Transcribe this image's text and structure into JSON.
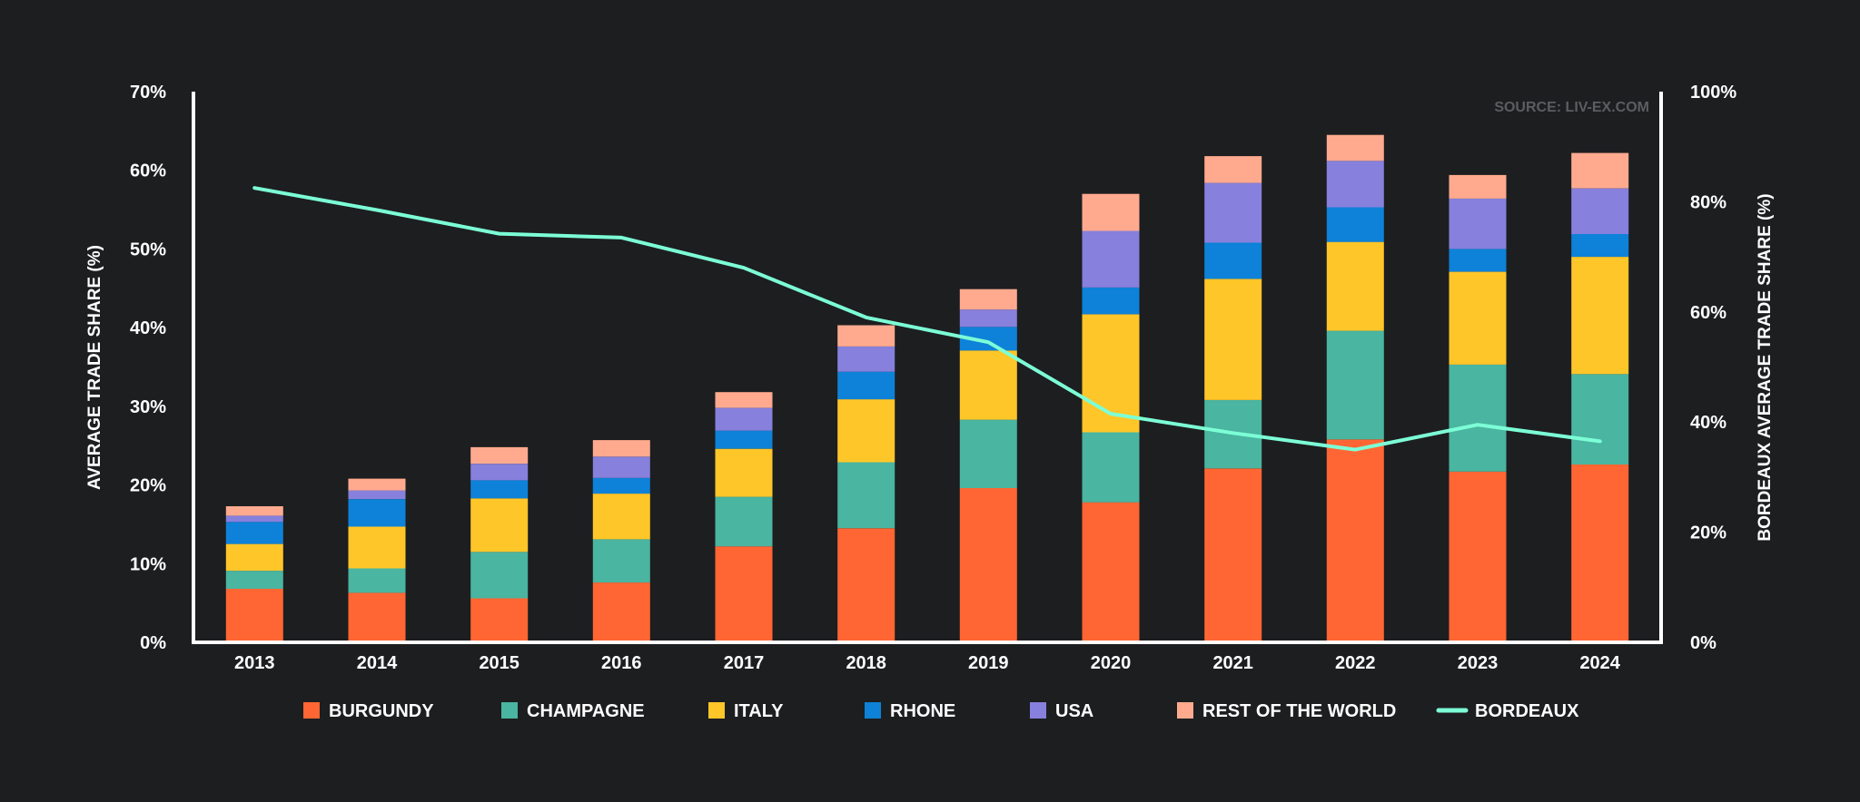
{
  "chart_data": {
    "type": "bar",
    "stacked": true,
    "categories": [
      "2013",
      "2014",
      "2015",
      "2016",
      "2017",
      "2018",
      "2019",
      "2020",
      "2021",
      "2022",
      "2023",
      "2024"
    ],
    "series": [
      {
        "name": "BURGUNDY",
        "color": "#ff6633",
        "values": [
          6.8,
          6.3,
          5.6,
          7.6,
          12.2,
          14.5,
          19.6,
          17.8,
          22.1,
          25.8,
          21.7,
          22.6
        ]
      },
      {
        "name": "CHAMPAGNE",
        "color": "#4ab5a0",
        "values": [
          2.3,
          3.1,
          5.9,
          5.5,
          6.3,
          8.4,
          8.7,
          8.9,
          8.7,
          13.8,
          13.6,
          11.5
        ]
      },
      {
        "name": "ITALY",
        "color": "#ffc629",
        "values": [
          3.4,
          5.3,
          6.8,
          5.8,
          6.1,
          8.0,
          8.8,
          15.0,
          15.4,
          11.3,
          11.8,
          14.9
        ]
      },
      {
        "name": "RHONE",
        "color": "#0d82d8",
        "values": [
          2.8,
          3.5,
          2.3,
          2.0,
          2.3,
          3.5,
          3.0,
          3.4,
          4.6,
          4.4,
          2.9,
          2.9
        ]
      },
      {
        "name": "USA",
        "color": "#8780dc",
        "values": [
          0.8,
          1.1,
          2.1,
          2.7,
          2.9,
          3.2,
          2.2,
          7.2,
          7.6,
          5.9,
          6.4,
          5.8
        ]
      },
      {
        "name": "REST OF THE WORLD",
        "color": "#ffaa8f",
        "values": [
          1.2,
          1.5,
          2.1,
          2.1,
          2.0,
          2.7,
          2.6,
          4.7,
          3.4,
          3.3,
          3.0,
          4.5
        ]
      }
    ],
    "line_series": {
      "name": "BORDEAUX",
      "color": "#7cffd6",
      "axis": "right",
      "values": [
        82.5,
        78.5,
        74.2,
        73.5,
        68.0,
        59.0,
        54.5,
        41.5,
        38.0,
        35.0,
        39.5,
        36.5
      ]
    },
    "ylabel": "AVERAGE TRADE SHARE (%)",
    "ylim": [
      0,
      70
    ],
    "yticks": [
      "0%",
      "10%",
      "20%",
      "30%",
      "40%",
      "50%",
      "60%",
      "70%"
    ],
    "y2label": "BORDEAUX AVERAGE TRADE SHARE (%)",
    "y2lim": [
      0,
      100
    ],
    "y2ticks": [
      "0%",
      "20%",
      "40%",
      "60%",
      "80%",
      "100%"
    ],
    "source": "SOURCE: LIV-EX.COM",
    "legend_position": "bottom",
    "grid": false
  }
}
